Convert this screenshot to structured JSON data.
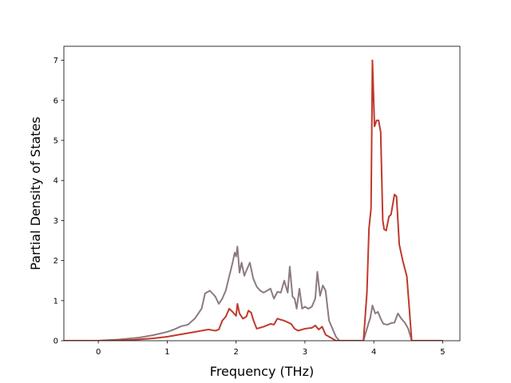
{
  "chart_data": {
    "type": "line",
    "title": "",
    "xlabel": "Frequency (THz)",
    "ylabel": "Partial Density of States",
    "xlim": [
      -0.5,
      5.25
    ],
    "ylim": [
      0,
      7.35
    ],
    "xticks": [
      0,
      1,
      2,
      3,
      4,
      5
    ],
    "yticks": [
      0,
      1,
      2,
      3,
      4,
      5,
      6,
      7
    ],
    "xtick_labels": [
      "0",
      "1",
      "2",
      "3",
      "4",
      "5"
    ],
    "ytick_labels": [
      "0",
      "1",
      "2",
      "3",
      "4",
      "5",
      "6",
      "7"
    ],
    "grid": false,
    "legend": "none",
    "series": [
      {
        "color": "#8c7a80",
        "points": [
          [
            -0.5,
            0.0
          ],
          [
            0.0,
            0.0
          ],
          [
            0.3,
            0.03
          ],
          [
            0.6,
            0.08
          ],
          [
            0.8,
            0.14
          ],
          [
            1.0,
            0.22
          ],
          [
            1.1,
            0.28
          ],
          [
            1.2,
            0.36
          ],
          [
            1.3,
            0.4
          ],
          [
            1.4,
            0.55
          ],
          [
            1.5,
            0.8
          ],
          [
            1.55,
            1.18
          ],
          [
            1.62,
            1.25
          ],
          [
            1.7,
            1.1
          ],
          [
            1.75,
            0.92
          ],
          [
            1.8,
            1.05
          ],
          [
            1.85,
            1.25
          ],
          [
            1.9,
            1.6
          ],
          [
            1.95,
            1.95
          ],
          [
            1.98,
            2.2
          ],
          [
            2.0,
            2.1
          ],
          [
            2.02,
            2.35
          ],
          [
            2.05,
            1.7
          ],
          [
            2.08,
            1.95
          ],
          [
            2.12,
            1.62
          ],
          [
            2.15,
            1.75
          ],
          [
            2.2,
            1.95
          ],
          [
            2.25,
            1.55
          ],
          [
            2.3,
            1.35
          ],
          [
            2.35,
            1.25
          ],
          [
            2.4,
            1.2
          ],
          [
            2.45,
            1.25
          ],
          [
            2.5,
            1.3
          ],
          [
            2.55,
            1.05
          ],
          [
            2.6,
            1.22
          ],
          [
            2.65,
            1.2
          ],
          [
            2.7,
            1.5
          ],
          [
            2.75,
            1.2
          ],
          [
            2.78,
            1.85
          ],
          [
            2.82,
            1.1
          ],
          [
            2.85,
            1.05
          ],
          [
            2.88,
            0.8
          ],
          [
            2.92,
            1.3
          ],
          [
            2.96,
            0.8
          ],
          [
            3.0,
            0.85
          ],
          [
            3.05,
            0.8
          ],
          [
            3.1,
            0.85
          ],
          [
            3.15,
            1.05
          ],
          [
            3.18,
            1.72
          ],
          [
            3.22,
            1.12
          ],
          [
            3.26,
            1.38
          ],
          [
            3.3,
            1.25
          ],
          [
            3.35,
            0.5
          ],
          [
            3.4,
            0.3
          ],
          [
            3.45,
            0.1
          ],
          [
            3.5,
            0.0
          ],
          [
            3.85,
            0.0
          ],
          [
            3.9,
            0.3
          ],
          [
            3.95,
            0.58
          ],
          [
            3.98,
            0.88
          ],
          [
            4.02,
            0.68
          ],
          [
            4.06,
            0.72
          ],
          [
            4.1,
            0.55
          ],
          [
            4.14,
            0.42
          ],
          [
            4.2,
            0.4
          ],
          [
            4.25,
            0.44
          ],
          [
            4.3,
            0.45
          ],
          [
            4.35,
            0.68
          ],
          [
            4.4,
            0.55
          ],
          [
            4.45,
            0.45
          ],
          [
            4.5,
            0.3
          ],
          [
            4.55,
            0.0
          ],
          [
            5.0,
            0.0
          ]
        ]
      },
      {
        "color": "#c0392b",
        "points": [
          [
            -0.5,
            0.0
          ],
          [
            0.0,
            0.0
          ],
          [
            0.5,
            0.02
          ],
          [
            0.8,
            0.06
          ],
          [
            1.0,
            0.1
          ],
          [
            1.2,
            0.16
          ],
          [
            1.4,
            0.22
          ],
          [
            1.6,
            0.28
          ],
          [
            1.7,
            0.25
          ],
          [
            1.75,
            0.28
          ],
          [
            1.8,
            0.5
          ],
          [
            1.85,
            0.6
          ],
          [
            1.9,
            0.8
          ],
          [
            1.95,
            0.72
          ],
          [
            2.0,
            0.62
          ],
          [
            2.02,
            0.92
          ],
          [
            2.05,
            0.68
          ],
          [
            2.1,
            0.55
          ],
          [
            2.15,
            0.6
          ],
          [
            2.18,
            0.75
          ],
          [
            2.22,
            0.7
          ],
          [
            2.25,
            0.52
          ],
          [
            2.3,
            0.3
          ],
          [
            2.4,
            0.35
          ],
          [
            2.5,
            0.42
          ],
          [
            2.55,
            0.4
          ],
          [
            2.6,
            0.55
          ],
          [
            2.7,
            0.5
          ],
          [
            2.8,
            0.42
          ],
          [
            2.85,
            0.3
          ],
          [
            2.9,
            0.25
          ],
          [
            3.0,
            0.3
          ],
          [
            3.1,
            0.32
          ],
          [
            3.15,
            0.38
          ],
          [
            3.2,
            0.28
          ],
          [
            3.25,
            0.35
          ],
          [
            3.3,
            0.15
          ],
          [
            3.35,
            0.1
          ],
          [
            3.4,
            0.05
          ],
          [
            3.45,
            0.0
          ],
          [
            3.85,
            0.0
          ],
          [
            3.9,
            1.2
          ],
          [
            3.93,
            2.8
          ],
          [
            3.96,
            3.3
          ],
          [
            3.98,
            7.0
          ],
          [
            4.01,
            5.35
          ],
          [
            4.04,
            5.5
          ],
          [
            4.07,
            5.5
          ],
          [
            4.1,
            5.2
          ],
          [
            4.13,
            3.0
          ],
          [
            4.15,
            2.78
          ],
          [
            4.18,
            2.75
          ],
          [
            4.22,
            3.1
          ],
          [
            4.25,
            3.15
          ],
          [
            4.3,
            3.65
          ],
          [
            4.33,
            3.6
          ],
          [
            4.37,
            2.4
          ],
          [
            4.42,
            2.0
          ],
          [
            4.48,
            1.6
          ],
          [
            4.52,
            0.7
          ],
          [
            4.55,
            0.0
          ],
          [
            5.0,
            0.0
          ]
        ]
      }
    ]
  }
}
